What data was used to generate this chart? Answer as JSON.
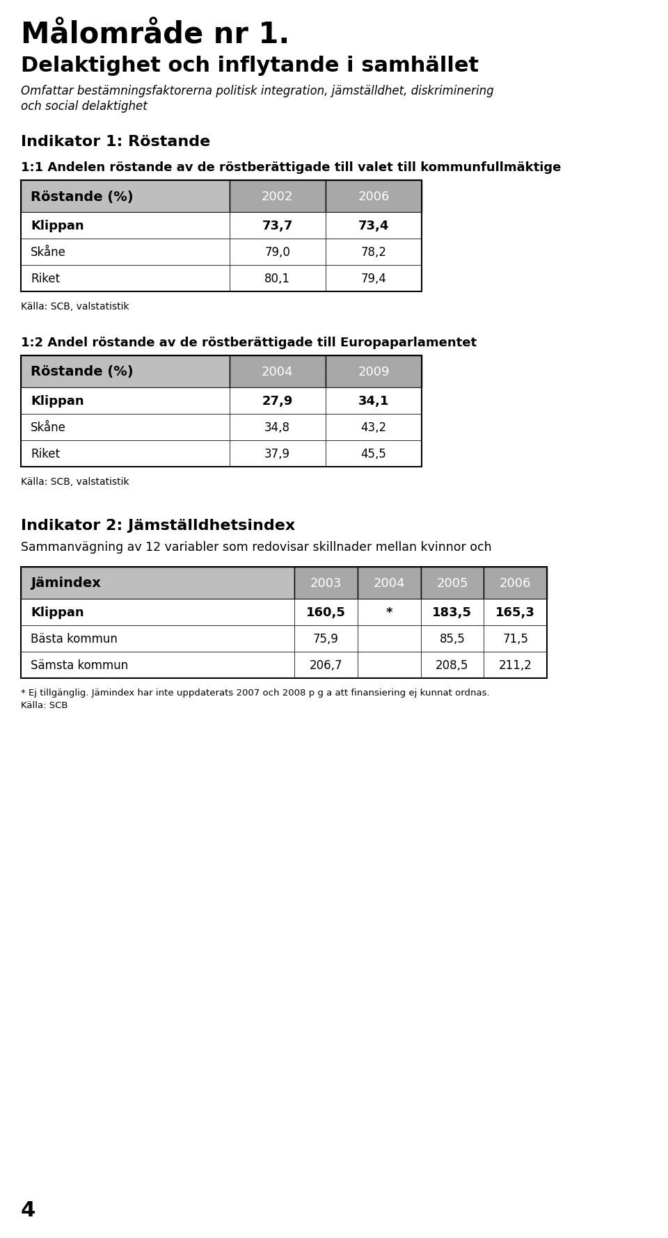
{
  "title_main": "Målområde nr 1.",
  "title_sub": "Delaktighet och inflytande i samhället",
  "subtitle_line1": "Omfattar bestämningsfaktorerna politisk integration, jämställdhet, diskriminering",
  "subtitle_line2": "och social delaktighet",
  "indikator1_header": "Indikator 1: Röstande",
  "table1_heading": "1:1 Andelen röstande av de röstberättigade till valet till kommunfullmäktige",
  "table1_col_header": "Röstande (%)",
  "table1_cols": [
    "2002",
    "2006"
  ],
  "table1_rows": [
    {
      "label": "Klippan",
      "bold": true,
      "values": [
        "73,7",
        "73,4"
      ]
    },
    {
      "label": "Skåne",
      "bold": false,
      "values": [
        "79,0",
        "78,2"
      ]
    },
    {
      "label": "Riket",
      "bold": false,
      "values": [
        "80,1",
        "79,4"
      ]
    }
  ],
  "table1_source": "Källa: SCB, valstatistik",
  "table2_heading": "1:2 Andel röstande av de röstberättigade till Europaparlamentet",
  "table2_col_header": "Röstande (%)",
  "table2_cols": [
    "2004",
    "2009"
  ],
  "table2_rows": [
    {
      "label": "Klippan",
      "bold": true,
      "values": [
        "27,9",
        "34,1"
      ]
    },
    {
      "label": "Skåne",
      "bold": false,
      "values": [
        "34,8",
        "43,2"
      ]
    },
    {
      "label": "Riket",
      "bold": false,
      "values": [
        "37,9",
        "45,5"
      ]
    }
  ],
  "table2_source": "Källa: SCB, valstatistik",
  "indikator2_header": "Indikator 2: Jämställdhetsindex",
  "indikator2_sub": "Sammanvägning av 12 variabler som redovisar skillnader mellan kvinnor och",
  "table3_col_header": "Jämindex",
  "table3_cols": [
    "2003",
    "2004",
    "2005",
    "2006"
  ],
  "table3_rows": [
    {
      "label": "Klippan",
      "bold": true,
      "values": [
        "160,5",
        "*",
        "183,5",
        "165,3"
      ]
    },
    {
      "label": "Bästa kommun",
      "bold": false,
      "values": [
        "75,9",
        "",
        "85,5",
        "71,5"
      ]
    },
    {
      "label": "Sämsta kommun",
      "bold": false,
      "values": [
        "206,7",
        "",
        "208,5",
        "211,2"
      ]
    }
  ],
  "table3_footnote": "* Ej tillgänglig. Jämindex har inte uppdaterats 2007 och 2008 p g a att finansiering ej kunnat ordnas.",
  "table3_source": "Källa: SCB",
  "page_number": "4",
  "bg_color": "#ffffff",
  "table_header_bg": "#bebebe",
  "table_col_bg": "#a8a8a8",
  "table_border_color": "#000000",
  "table_row_bg": "#ffffff"
}
